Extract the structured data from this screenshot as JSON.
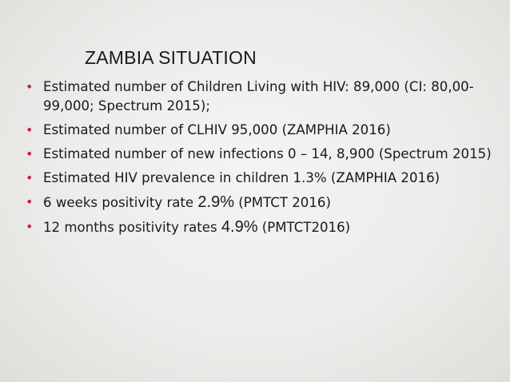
{
  "title": "ZAMBIA SITUATION",
  "bullet_color": "#c0254f",
  "bullets": [
    {
      "text": "Estimated number of Children Living with HIV: 89,000 (CI: 80,00-99,000; Spectrum 2015);"
    },
    {
      "text": "Estimated number of CLHIV 95,000 (ZAMPHIA 2016)"
    },
    {
      "text": "Estimated number of new infections 0 – 14, 8,900 (Spectrum 2015)"
    },
    {
      "text": "Estimated HIV prevalence in children 1.3% (ZAMPHIA 2016)"
    },
    {
      "pre": "6 weeks positivity rate ",
      "highlight": "2.9%",
      "post": " (PMTCT 2016)"
    },
    {
      "pre": "12 months positivity rates ",
      "highlight": "4.9%",
      "post": " (PMTCT2016)"
    }
  ]
}
